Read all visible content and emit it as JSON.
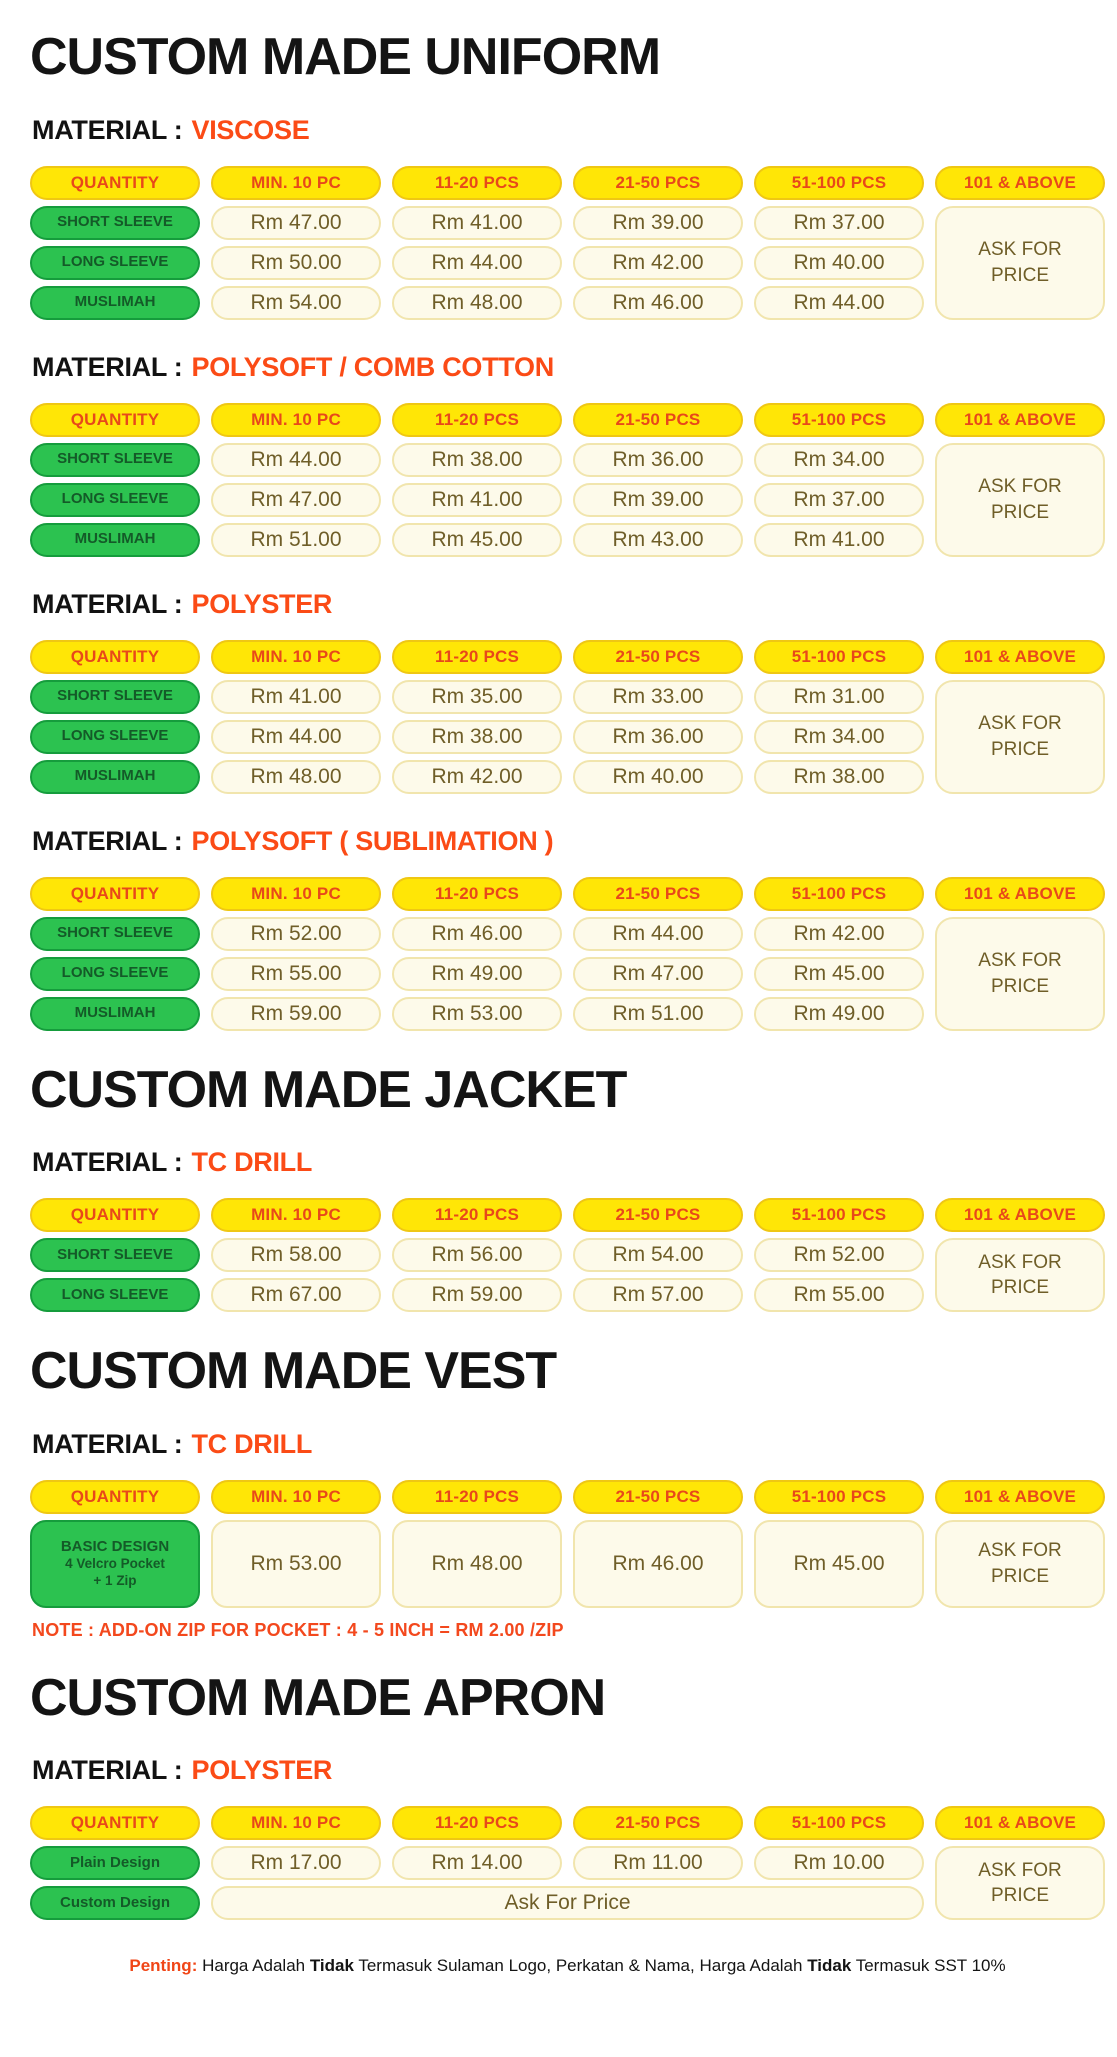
{
  "palette": {
    "header_fill": "#ffe606",
    "header_border": "#efc713",
    "header_text": "#e8481a",
    "green_fill": "#2cc250",
    "green_border": "#159c3c",
    "green_text": "#145a28",
    "price_fill": "#fdfaea",
    "price_border": "#f1e5ad",
    "price_text": "#6f5e28",
    "material_accent": "#fb4b16",
    "note_text": "#f3481d",
    "title_text": "#141414"
  },
  "table_headers": [
    "QUANTITY",
    "MIN. 10 PC",
    "11-20 PCS",
    "21-50 PCS",
    "51-100 PCS",
    "101 & ABOVE"
  ],
  "ask_lines": [
    "ASK FOR",
    "PRICE"
  ],
  "sections": [
    {
      "title": "CUSTOM MADE UNIFORM",
      "groups": [
        {
          "material_label": "MATERIAL :",
          "material_name": "VISCOSE",
          "rows": [
            {
              "label": "SHORT SLEEVE",
              "prices": [
                "Rm 47.00",
                "Rm 41.00",
                "Rm 39.00",
                "Rm 37.00"
              ]
            },
            {
              "label": "LONG SLEEVE",
              "prices": [
                "Rm 50.00",
                "Rm 44.00",
                "Rm 42.00",
                "Rm 40.00"
              ]
            },
            {
              "label": "MUSLIMAH",
              "prices": [
                "Rm 54.00",
                "Rm 48.00",
                "Rm 46.00",
                "Rm 44.00"
              ]
            }
          ]
        },
        {
          "material_label": "MATERIAL :",
          "material_name": "POLYSOFT /  COMB COTTON",
          "rows": [
            {
              "label": "SHORT SLEEVE",
              "prices": [
                "Rm 44.00",
                "Rm 38.00",
                "Rm 36.00",
                "Rm 34.00"
              ]
            },
            {
              "label": "LONG SLEEVE",
              "prices": [
                "Rm 47.00",
                "Rm 41.00",
                "Rm 39.00",
                "Rm 37.00"
              ]
            },
            {
              "label": "MUSLIMAH",
              "prices": [
                "Rm 51.00",
                "Rm 45.00",
                "Rm 43.00",
                "Rm 41.00"
              ]
            }
          ]
        },
        {
          "material_label": "MATERIAL :",
          "material_name": "POLYSTER",
          "rows": [
            {
              "label": "SHORT SLEEVE",
              "prices": [
                "Rm 41.00",
                "Rm 35.00",
                "Rm 33.00",
                "Rm 31.00"
              ]
            },
            {
              "label": "LONG SLEEVE",
              "prices": [
                "Rm 44.00",
                "Rm 38.00",
                "Rm 36.00",
                "Rm 34.00"
              ]
            },
            {
              "label": "MUSLIMAH",
              "prices": [
                "Rm 48.00",
                "Rm 42.00",
                "Rm 40.00",
                "Rm 38.00"
              ]
            }
          ]
        },
        {
          "material_label": "MATERIAL :",
          "material_name": "POLYSOFT ( SUBLIMATION )",
          "rows": [
            {
              "label": "SHORT SLEEVE",
              "prices": [
                "Rm 52.00",
                "Rm 46.00",
                "Rm 44.00",
                "Rm 42.00"
              ]
            },
            {
              "label": "LONG SLEEVE",
              "prices": [
                "Rm 55.00",
                "Rm 49.00",
                "Rm 47.00",
                "Rm 45.00"
              ]
            },
            {
              "label": "MUSLIMAH",
              "prices": [
                "Rm 59.00",
                "Rm 53.00",
                "Rm 51.00",
                "Rm 49.00"
              ]
            }
          ]
        }
      ]
    },
    {
      "title": "CUSTOM MADE JACKET",
      "groups": [
        {
          "material_label": "MATERIAL :",
          "material_name": "TC DRILL",
          "rows": [
            {
              "label": "SHORT SLEEVE",
              "prices": [
                "Rm 58.00",
                "Rm 56.00",
                "Rm 54.00",
                "Rm 52.00"
              ]
            },
            {
              "label": "LONG SLEEVE",
              "prices": [
                "Rm 67.00",
                "Rm 59.00",
                "Rm 57.00",
                "Rm 55.00"
              ]
            }
          ]
        }
      ]
    },
    {
      "title": "CUSTOM MADE VEST",
      "groups": [
        {
          "material_label": "MATERIAL :",
          "material_name": "TC DRILL",
          "rows": [
            {
              "label": "BASIC DESIGN",
              "sublines": [
                "4 Velcro Pocket",
                "+ 1 Zip"
              ],
              "tall": true,
              "prices": [
                "Rm 53.00",
                "Rm 48.00",
                "Rm 46.00",
                "Rm 45.00"
              ]
            }
          ],
          "note": "NOTE : ADD-ON ZIP FOR POCKET : 4 - 5 INCH = RM 2.00 /ZIP"
        }
      ]
    },
    {
      "title": "CUSTOM MADE APRON",
      "groups": [
        {
          "material_label": "MATERIAL :",
          "material_name": "POLYSTER",
          "rows": [
            {
              "label": "Plain Design",
              "prices": [
                "Rm 17.00",
                "Rm 14.00",
                "Rm 11.00",
                "Rm 10.00"
              ]
            },
            {
              "label": "Custom Design",
              "merged": "Ask For Price"
            }
          ]
        }
      ]
    }
  ],
  "footer": {
    "penting": "Penting:",
    "part1": " Harga Adalah ",
    "bold1": "Tidak",
    "part2": " Termasuk Sulaman Logo, Perkatan & Nama, Harga Adalah ",
    "bold2": "Tidak",
    "part3": " Termasuk SST 10%"
  }
}
